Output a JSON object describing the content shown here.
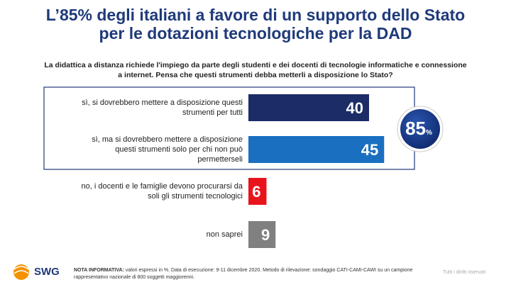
{
  "chart_data": {
    "type": "bar",
    "title": "L’85% degli italiani a favore di un supporto dello Stato\nper le dotazioni tecnologiche per la DAD",
    "subtitle": "La didattica a distanza richiede l'impiego da parte degli studenti e dei docenti di tecnologie informatiche e connessione\na internet. Pensa che questi strumenti debba metterli a disposizione lo Stato?",
    "categories": [
      "sì, si dovrebbero mettere a disposizione questi\nstrumenti per tutti",
      "sì, ma si dovrebbero mettere a disposizione\nquesti strumenti solo per chi non può\npermetterseli",
      "no, i docenti e le famiglie devono procurarsi da\nsoli gli strumenti tecnologici",
      "non saprei"
    ],
    "values": [
      40,
      45,
      6,
      9
    ],
    "colors": [
      "#1b2c66",
      "#1a6fc0",
      "#e8141c",
      "#808080"
    ],
    "total_value": 85,
    "total_unit": "%",
    "brand": "SWG",
    "note_label": "NOTA INFORMATIVA:",
    "note": " valori espressi in %. Data di esecuzione: 9-11 dicembre 2020. Metodo di rilevazione: sondaggio CATI-CAMI-CAWI su un campione rappresentativo nazionale di 800 soggetti maggiorenni.",
    "rights": "Tutti i diritti riservati"
  }
}
